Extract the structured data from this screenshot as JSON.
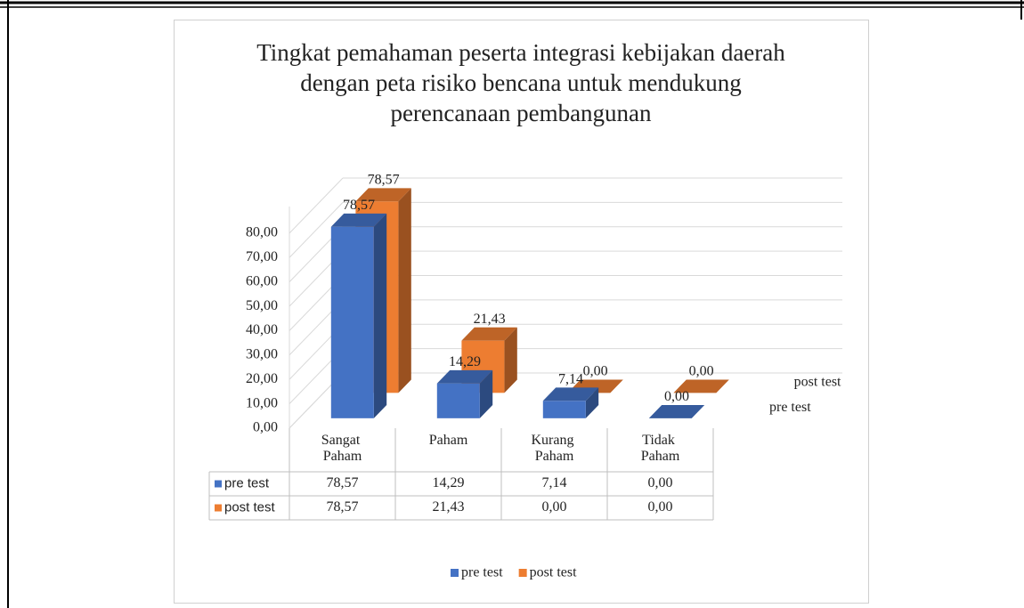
{
  "chart_data": {
    "type": "bar3d",
    "title": "Tingkat pemahaman peserta integrasi kebijakan daerah dengan peta risiko bencana untuk mendukung perencanaan pembangunan",
    "categories": [
      "Sangat Paham",
      "Paham",
      "Kurang Paham",
      "Tidak Paham"
    ],
    "series": [
      {
        "name": "pre test",
        "color": "#4472c4",
        "values": [
          78.57,
          14.29,
          7.14,
          0
        ],
        "value_labels": [
          "78,57",
          "14,29",
          "7,14",
          "0,00"
        ]
      },
      {
        "name": "post test",
        "color": "#ed7d31",
        "values": [
          78.57,
          21.43,
          0,
          0
        ],
        "value_labels": [
          "78,57",
          "21,43",
          "0,00",
          "0,00"
        ]
      }
    ],
    "ylim": [
      0,
      80
    ],
    "yticks": [
      {
        "value": 0,
        "label": "0,00"
      },
      {
        "value": 10,
        "label": "10,00"
      },
      {
        "value": 20,
        "label": "20,00"
      },
      {
        "value": 30,
        "label": "30,00"
      },
      {
        "value": 40,
        "label": "40,00"
      },
      {
        "value": 50,
        "label": "50,00"
      },
      {
        "value": 60,
        "label": "60,00"
      },
      {
        "value": 70,
        "label": "70,00"
      },
      {
        "value": 80,
        "label": "80,00"
      }
    ],
    "grid": true,
    "legend": "bottom",
    "data_table": true
  }
}
